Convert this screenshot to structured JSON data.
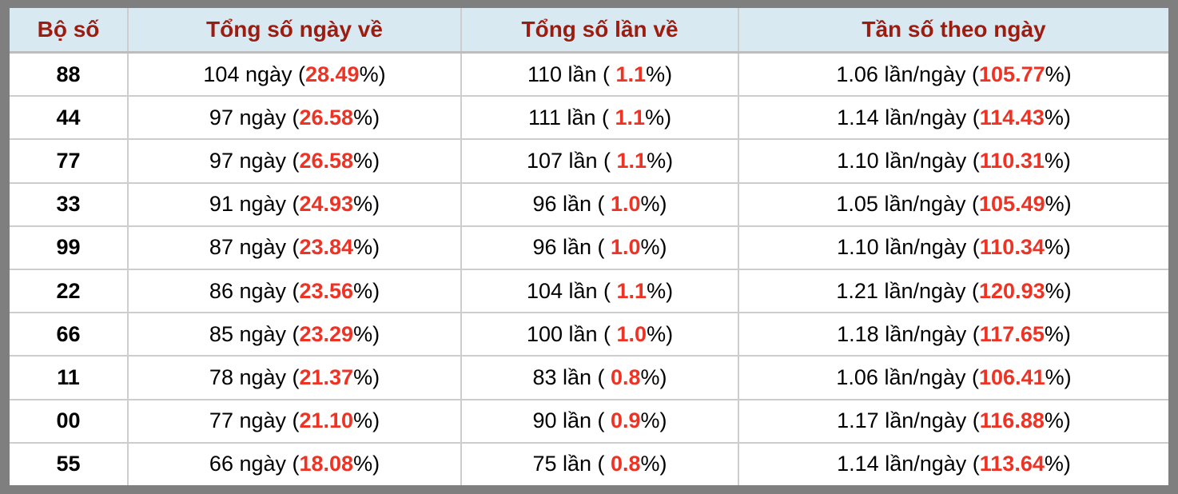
{
  "colors": {
    "frame": "#7f7f7f",
    "header_bg": "#d9e9f2",
    "header_text": "#9d1c10",
    "highlight_red": "#ee3224",
    "grid_line": "#cdcdcd",
    "row_bg": "#ffffff",
    "body_text": "#000000"
  },
  "table": {
    "headers": [
      {
        "label": "Bộ số"
      },
      {
        "label": "Tổng số ngày về"
      },
      {
        "label": "Tổng số lần về"
      },
      {
        "label": "Tần số theo ngày"
      }
    ],
    "rows": [
      {
        "pair": "88",
        "days": {
          "prefix": "104 ngày (",
          "value": "28.49",
          "suffix": "%)"
        },
        "times": {
          "prefix": "110 lần ( ",
          "value": "1.1",
          "suffix": "%)"
        },
        "freq": {
          "prefix": "1.06 lần/ngày (",
          "value": "105.77",
          "suffix": "%)"
        }
      },
      {
        "pair": "44",
        "days": {
          "prefix": "97 ngày (",
          "value": "26.58",
          "suffix": "%)"
        },
        "times": {
          "prefix": "111 lần ( ",
          "value": "1.1",
          "suffix": "%)"
        },
        "freq": {
          "prefix": "1.14 lần/ngày (",
          "value": "114.43",
          "suffix": "%)"
        }
      },
      {
        "pair": "77",
        "days": {
          "prefix": "97 ngày (",
          "value": "26.58",
          "suffix": "%)"
        },
        "times": {
          "prefix": "107 lần ( ",
          "value": "1.1",
          "suffix": "%)"
        },
        "freq": {
          "prefix": "1.10 lần/ngày (",
          "value": "110.31",
          "suffix": "%)"
        }
      },
      {
        "pair": "33",
        "days": {
          "prefix": "91 ngày (",
          "value": "24.93",
          "suffix": "%)"
        },
        "times": {
          "prefix": "96 lần ( ",
          "value": "1.0",
          "suffix": "%)"
        },
        "freq": {
          "prefix": "1.05 lần/ngày (",
          "value": "105.49",
          "suffix": "%)"
        }
      },
      {
        "pair": "99",
        "days": {
          "prefix": "87 ngày (",
          "value": "23.84",
          "suffix": "%)"
        },
        "times": {
          "prefix": "96 lần ( ",
          "value": "1.0",
          "suffix": "%)"
        },
        "freq": {
          "prefix": "1.10 lần/ngày (",
          "value": "110.34",
          "suffix": "%)"
        }
      },
      {
        "pair": "22",
        "days": {
          "prefix": "86 ngày (",
          "value": "23.56",
          "suffix": "%)"
        },
        "times": {
          "prefix": "104 lần ( ",
          "value": "1.1",
          "suffix": "%)"
        },
        "freq": {
          "prefix": "1.21 lần/ngày (",
          "value": "120.93",
          "suffix": "%)"
        }
      },
      {
        "pair": "66",
        "days": {
          "prefix": "85 ngày (",
          "value": "23.29",
          "suffix": "%)"
        },
        "times": {
          "prefix": "100 lần ( ",
          "value": "1.0",
          "suffix": "%)"
        },
        "freq": {
          "prefix": "1.18 lần/ngày (",
          "value": "117.65",
          "suffix": "%)"
        }
      },
      {
        "pair": "11",
        "days": {
          "prefix": "78 ngày (",
          "value": "21.37",
          "suffix": "%)"
        },
        "times": {
          "prefix": "83 lần ( ",
          "value": "0.8",
          "suffix": "%)"
        },
        "freq": {
          "prefix": "1.06 lần/ngày (",
          "value": "106.41",
          "suffix": "%)"
        }
      },
      {
        "pair": "00",
        "days": {
          "prefix": "77 ngày (",
          "value": "21.10",
          "suffix": "%)"
        },
        "times": {
          "prefix": "90 lần ( ",
          "value": "0.9",
          "suffix": "%)"
        },
        "freq": {
          "prefix": "1.17 lần/ngày (",
          "value": "116.88",
          "suffix": "%)"
        }
      },
      {
        "pair": "55",
        "days": {
          "prefix": "66 ngày (",
          "value": "18.08",
          "suffix": "%)"
        },
        "times": {
          "prefix": "75 lần ( ",
          "value": "0.8",
          "suffix": "%)"
        },
        "freq": {
          "prefix": "1.14 lần/ngày (",
          "value": "113.64",
          "suffix": "%)"
        }
      }
    ]
  }
}
